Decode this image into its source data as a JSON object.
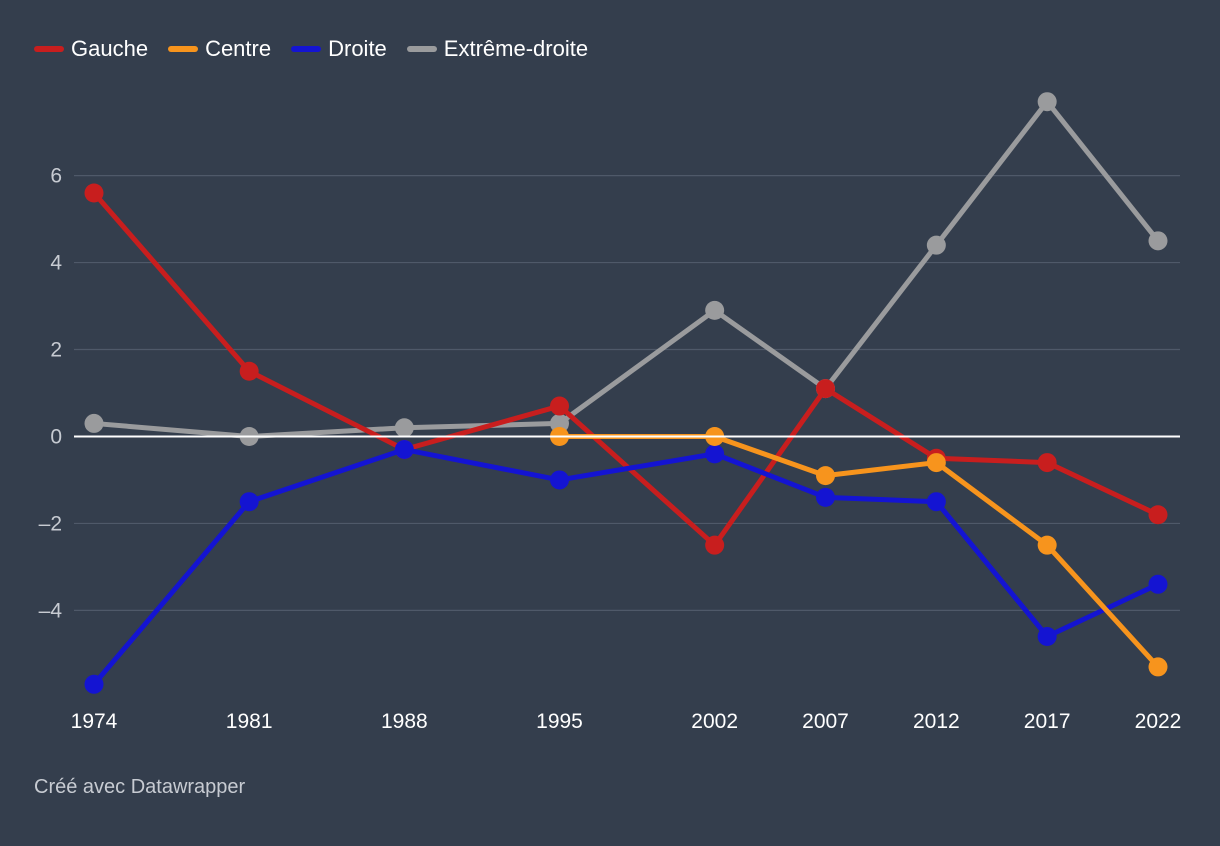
{
  "chart_data": {
    "type": "line",
    "title": "",
    "xlabel": "",
    "ylabel": "",
    "x": [
      1974,
      1981,
      1988,
      1995,
      2002,
      2007,
      2012,
      2017,
      2022
    ],
    "x_tick_labels": [
      "1974",
      "1981",
      "1988",
      "1995",
      "2002",
      "2007",
      "2012",
      "2017",
      "2022"
    ],
    "y_ticks": [
      -4,
      -2,
      0,
      2,
      4,
      6
    ],
    "y_tick_labels": [
      "–4",
      "–2",
      "0",
      "2",
      "4",
      "6"
    ],
    "ylim": [
      -5.9,
      7.9
    ],
    "grid": true,
    "legend_position": "top-left",
    "series": [
      {
        "name": "Gauche",
        "color": "#c81e1e",
        "values": [
          5.6,
          1.5,
          -0.3,
          0.7,
          -2.5,
          1.1,
          -0.5,
          -0.6,
          -1.8
        ]
      },
      {
        "name": "Centre",
        "color": "#f7941d",
        "values": [
          null,
          null,
          null,
          0.0,
          0.0,
          -0.9,
          -0.6,
          -2.5,
          -5.3
        ]
      },
      {
        "name": "Droite",
        "color": "#1414d2",
        "values": [
          -5.7,
          -1.5,
          -0.3,
          -1.0,
          -0.4,
          -1.4,
          -1.5,
          -4.6,
          -3.4
        ]
      },
      {
        "name": "Extrême-droite",
        "color": "#9a9b9d",
        "values": [
          0.3,
          0.0,
          0.2,
          0.3,
          2.9,
          1.1,
          4.4,
          7.7,
          4.5
        ]
      }
    ]
  },
  "footer": {
    "credit": "Créé avec Datawrapper"
  }
}
